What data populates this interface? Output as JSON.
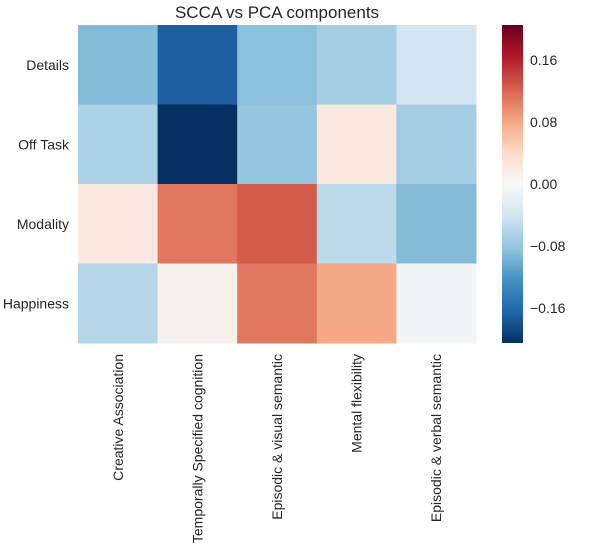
{
  "chart_data": {
    "type": "heatmap",
    "title": "SCCA vs PCA components",
    "xlabel": "",
    "ylabel": "",
    "rows": [
      "Details",
      "Off Task",
      "Modality",
      "Happiness"
    ],
    "columns": [
      "Creative Association",
      "Temporally Specified cognition",
      "Episodic & visual semantic",
      "Mental flexibility",
      "Episodic & verbal semantic"
    ],
    "values": [
      [
        -0.09,
        -0.17,
        -0.085,
        -0.07,
        -0.04
      ],
      [
        -0.065,
        -0.205,
        -0.08,
        0.02,
        -0.07
      ],
      [
        0.02,
        0.11,
        0.125,
        -0.055,
        -0.09
      ],
      [
        -0.06,
        0.01,
        0.11,
        0.08,
        -0.005
      ]
    ],
    "colorbar": {
      "vmin": -0.205,
      "vmax": 0.205,
      "colormap": "RdBu_r",
      "ticks": [
        0.16,
        0.08,
        0.0,
        -0.08,
        -0.16
      ],
      "tick_labels": [
        "0.16",
        "0.08",
        "0.00",
        "−0.08",
        "−0.16"
      ]
    }
  }
}
